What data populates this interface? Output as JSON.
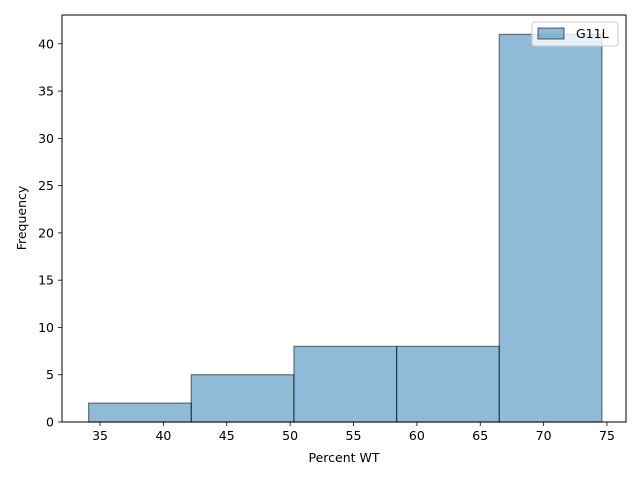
{
  "chart_data": {
    "type": "bar",
    "subtype": "histogram",
    "title": "",
    "xlabel": "Percent WT",
    "ylabel": "Frequency",
    "xlim": [
      32.0,
      76.5
    ],
    "ylim": [
      0,
      43.05
    ],
    "xticks": [
      35,
      40,
      45,
      50,
      55,
      60,
      65,
      70,
      75
    ],
    "yticks": [
      0,
      5,
      10,
      15,
      20,
      25,
      30,
      35,
      40
    ],
    "bins": [
      {
        "x0": 34.1,
        "x1": 42.2,
        "count": 2
      },
      {
        "x0": 42.2,
        "x1": 50.3,
        "count": 5
      },
      {
        "x0": 50.3,
        "x1": 58.4,
        "count": 8
      },
      {
        "x0": 58.4,
        "x1": 66.5,
        "count": 8
      },
      {
        "x0": 66.5,
        "x1": 74.6,
        "count": 41
      }
    ],
    "series": [
      {
        "name": "G11L",
        "color": "#1f77b4",
        "alpha": 0.5
      }
    ],
    "legend": "top-right",
    "grid": false
  }
}
